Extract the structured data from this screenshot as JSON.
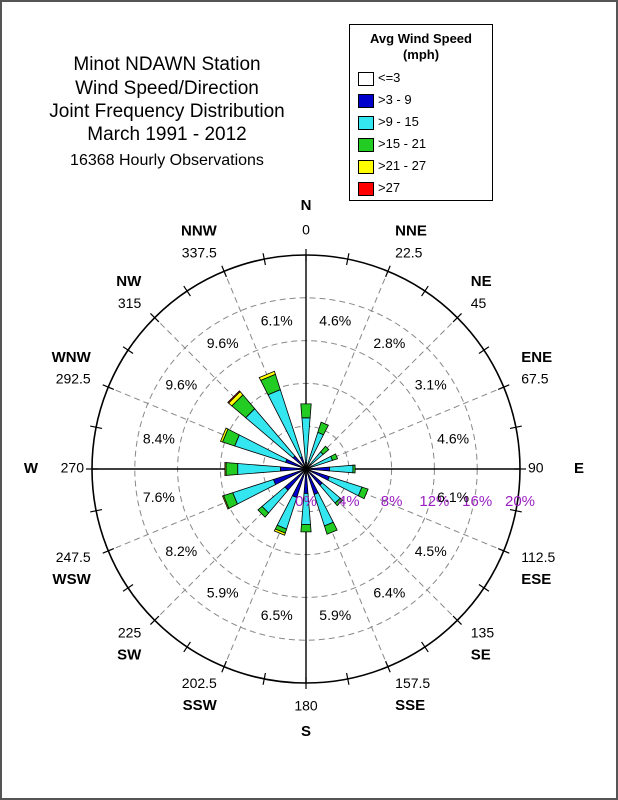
{
  "title_lines": [
    "Minot NDAWN Station",
    "Wind Speed/Direction",
    "Joint Frequency Distribution",
    "March 1991 - 2012"
  ],
  "subtitle": "16368 Hourly Observations",
  "legend": {
    "title_line1": "Avg Wind Speed",
    "title_line2": "(mph)",
    "items": [
      {
        "label": "<=3",
        "color": "#ffffff"
      },
      {
        "label": ">3 - 9",
        "color": "#0000cc"
      },
      {
        "label": ">9 - 15",
        "color": "#33e6f0"
      },
      {
        "label": ">15 - 21",
        "color": "#22cc22"
      },
      {
        "label": ">21 - 27",
        "color": "#ffff00"
      },
      {
        "label": ">27",
        "color": "#ff0000"
      }
    ]
  },
  "chart_data": {
    "type": "wind-rose",
    "radial_axis": {
      "ticks": [
        0,
        4,
        8,
        12,
        16,
        20
      ],
      "tick_labels": [
        "0%",
        "4%",
        "8%",
        "12%",
        "16%",
        "20%"
      ],
      "max": 20,
      "label_color": "#9b1fc2"
    },
    "directions": [
      {
        "compass": "N",
        "degrees": "0",
        "total": "6.1%",
        "cum": [
          0.0,
          0.6,
          4.8,
          6.1,
          6.1,
          6.1
        ]
      },
      {
        "compass": "NNE",
        "degrees": "22.5",
        "total": "4.6%",
        "cum": [
          0.0,
          0.6,
          3.6,
          4.6,
          4.6,
          4.6
        ]
      },
      {
        "compass": "NE",
        "degrees": "45",
        "total": "2.8%",
        "cum": [
          0.0,
          0.6,
          2.1,
          2.8,
          2.8,
          2.8
        ]
      },
      {
        "compass": "ENE",
        "degrees": "67.5",
        "total": "3.1%",
        "cum": [
          0.0,
          0.6,
          2.6,
          3.1,
          3.1,
          3.1
        ]
      },
      {
        "compass": "E",
        "degrees": "90",
        "total": "4.6%",
        "cum": [
          0.0,
          2.2,
          4.4,
          4.6,
          4.6,
          4.6
        ]
      },
      {
        "compass": "ESE",
        "degrees": "112.5",
        "total": "6.1%",
        "cum": [
          0.0,
          2.3,
          5.5,
          6.1,
          6.1,
          6.1
        ]
      },
      {
        "compass": "SE",
        "degrees": "135",
        "total": "4.5%",
        "cum": [
          0.0,
          2.0,
          4.2,
          4.5,
          4.5,
          4.5
        ]
      },
      {
        "compass": "SSE",
        "degrees": "157.5",
        "total": "6.4%",
        "cum": [
          0.0,
          2.5,
          5.6,
          6.4,
          6.4,
          6.4
        ]
      },
      {
        "compass": "S",
        "degrees": "180",
        "total": "5.9%",
        "cum": [
          0.0,
          2.3,
          5.2,
          5.9,
          5.9,
          5.9
        ]
      },
      {
        "compass": "SSW",
        "degrees": "202.5",
        "total": "6.5%",
        "cum": [
          0.0,
          2.8,
          5.9,
          6.3,
          6.5,
          6.5
        ]
      },
      {
        "compass": "SW",
        "degrees": "225",
        "total": "5.9%",
        "cum": [
          0.0,
          2.6,
          5.4,
          5.9,
          5.9,
          5.9
        ]
      },
      {
        "compass": "WSW",
        "degrees": "247.5",
        "total": "8.2%",
        "cum": [
          0.0,
          3.2,
          7.2,
          8.1,
          8.2,
          8.2
        ]
      },
      {
        "compass": "W",
        "degrees": "270",
        "total": "7.6%",
        "cum": [
          0.0,
          2.4,
          6.4,
          7.5,
          7.6,
          7.6
        ]
      },
      {
        "compass": "WNW",
        "degrees": "292.5",
        "total": "8.4%",
        "cum": [
          0.0,
          2.0,
          7.0,
          8.2,
          8.4,
          8.4
        ]
      },
      {
        "compass": "NW",
        "degrees": "315",
        "total": "9.6%",
        "cum": [
          0.0,
          1.6,
          7.4,
          9.1,
          9.5,
          9.6
        ]
      },
      {
        "compass": "NNW",
        "degrees": "337.5",
        "total": "9.6%",
        "cum": [
          0.0,
          1.2,
          7.8,
          9.3,
          9.6,
          9.6
        ]
      }
    ]
  }
}
